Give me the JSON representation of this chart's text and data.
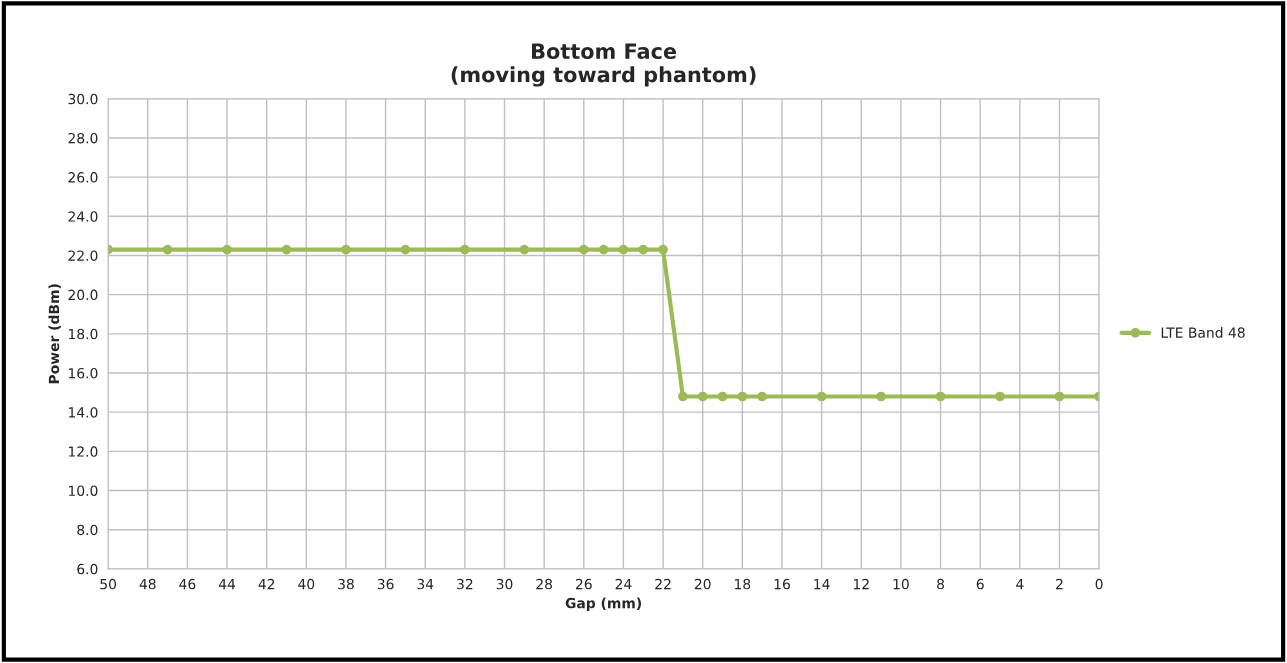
{
  "chart_data": {
    "type": "line",
    "title": "Bottom Face\n(moving toward phantom)",
    "xlabel": "Gap (mm)",
    "ylabel": "Power (dBm)",
    "x": [
      50,
      47,
      44,
      41,
      38,
      35,
      32,
      29,
      26,
      25,
      24,
      23,
      22,
      21,
      20,
      19,
      18,
      17,
      14,
      11,
      8,
      5,
      2,
      0
    ],
    "series": [
      {
        "name": "LTE Band 48",
        "color": "#9bbb59",
        "values": [
          22.3,
          22.3,
          22.3,
          22.3,
          22.3,
          22.3,
          22.3,
          22.3,
          22.3,
          22.3,
          22.3,
          22.3,
          22.3,
          14.8,
          14.8,
          14.8,
          14.8,
          14.8,
          14.8,
          14.8,
          14.8,
          14.8,
          14.8,
          14.8
        ]
      }
    ],
    "xlim": [
      50,
      0
    ],
    "xticks": [
      50,
      48,
      46,
      44,
      42,
      40,
      38,
      36,
      34,
      32,
      30,
      28,
      26,
      24,
      22,
      20,
      18,
      16,
      14,
      12,
      10,
      8,
      6,
      4,
      2,
      0
    ],
    "ylim": [
      6,
      30
    ],
    "yticks": [
      {
        "value": 6,
        "label": "6.0"
      },
      {
        "value": 8,
        "label": "8.0"
      },
      {
        "value": 10,
        "label": "10.0"
      },
      {
        "value": 12,
        "label": "12.0"
      },
      {
        "value": 14,
        "label": "14.0"
      },
      {
        "value": 16,
        "label": "16.0"
      },
      {
        "value": 18,
        "label": "18.0"
      },
      {
        "value": 20,
        "label": "20.0"
      },
      {
        "value": 22,
        "label": "22.0"
      },
      {
        "value": 24,
        "label": "24.0"
      },
      {
        "value": 26,
        "label": "26.0"
      },
      {
        "value": 28,
        "label": "28.0"
      },
      {
        "value": 30,
        "label": "30.0"
      }
    ],
    "grid": true,
    "legend": "right",
    "marker": "circle",
    "line_style": "solid"
  }
}
